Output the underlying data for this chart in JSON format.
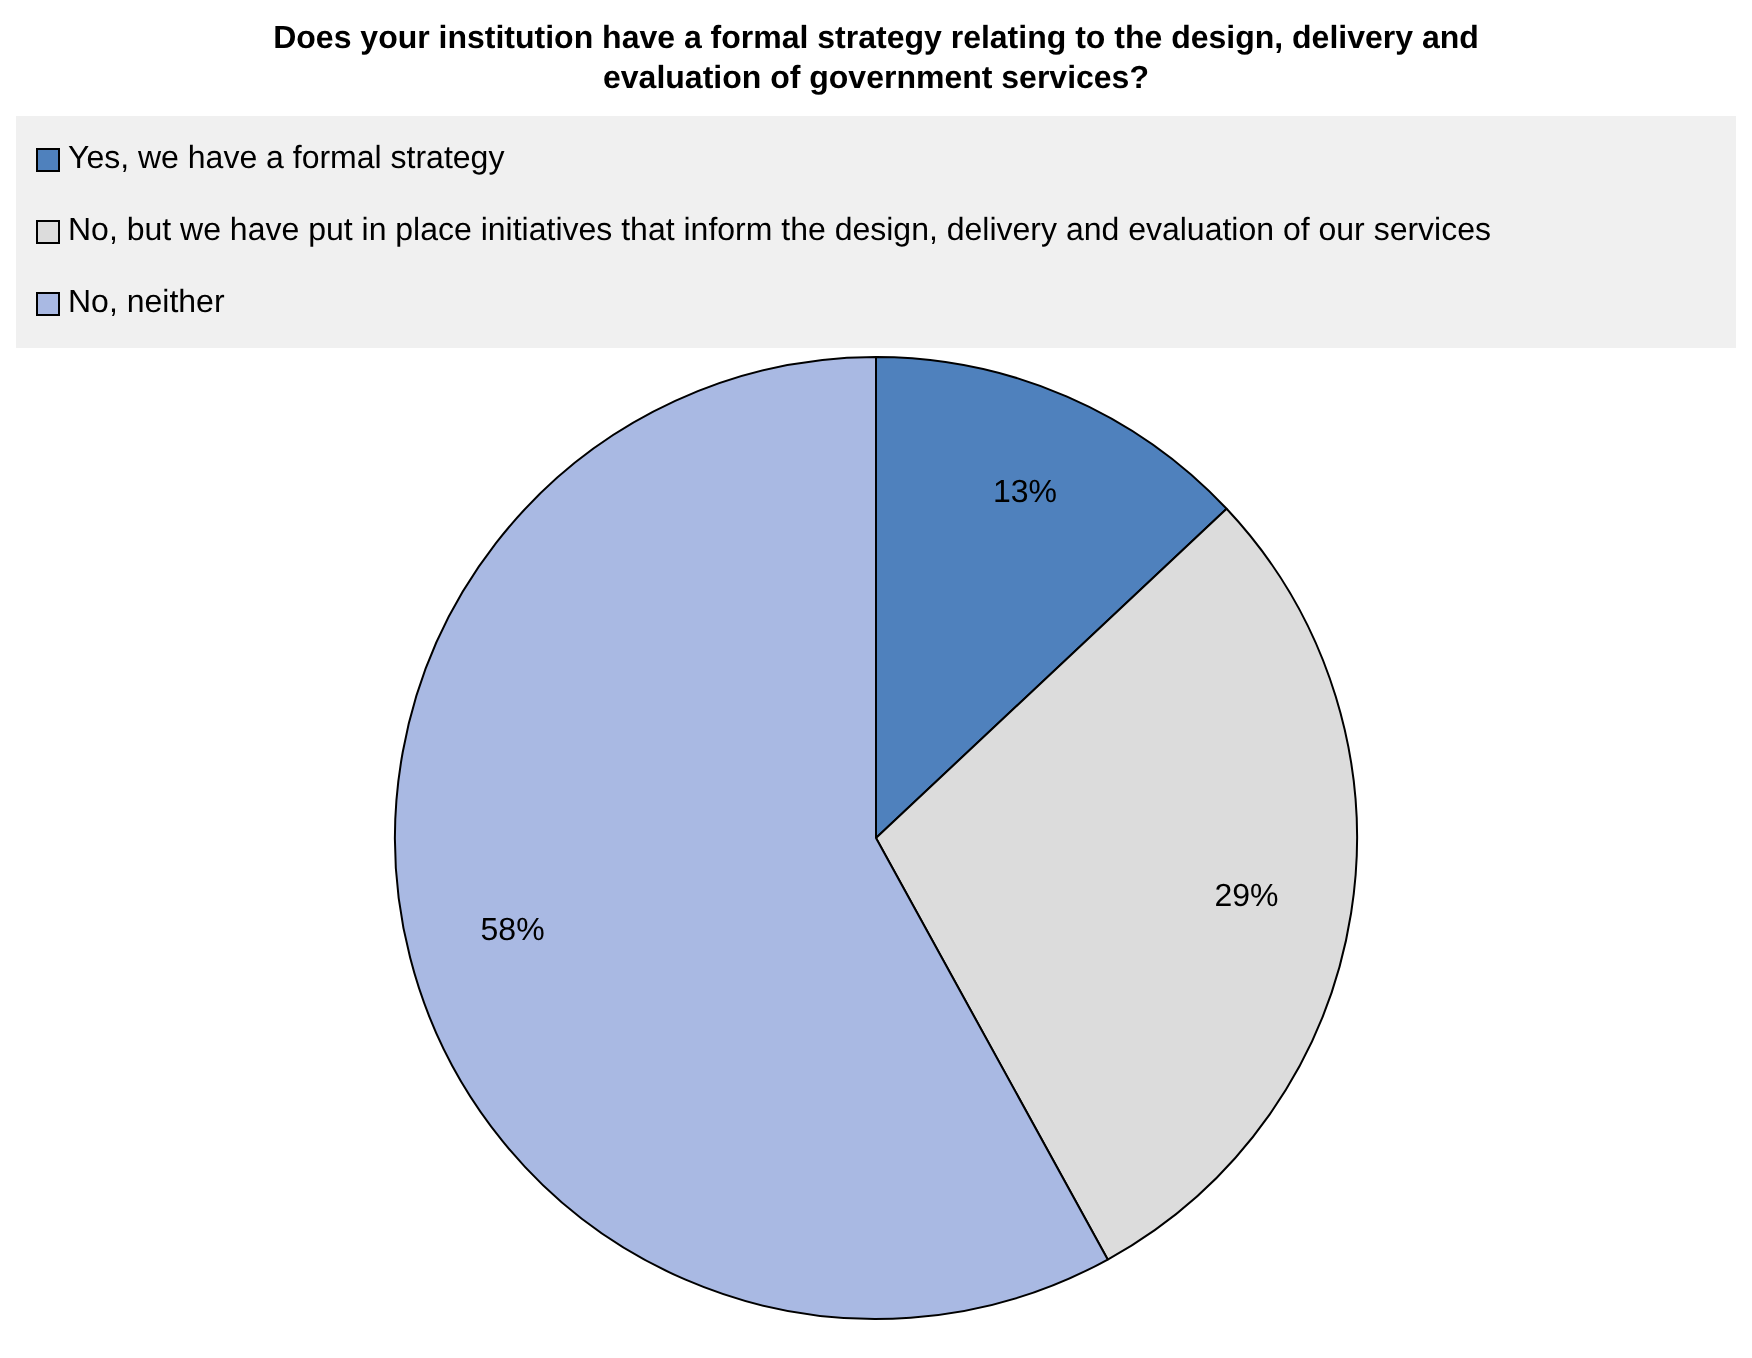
{
  "chart_data": {
    "type": "pie",
    "title": "Does your institution have a formal strategy relating to the design, delivery and evaluation of government services?",
    "categories": [
      "Yes, we have a formal strategy",
      "No, but we have put in place initiatives that inform the design, delivery and evaluation of our services",
      "No, neither"
    ],
    "values": [
      13,
      29,
      58
    ],
    "colors": [
      "#4f81bd",
      "#dcdcdc",
      "#a9b9e3"
    ],
    "value_labels": [
      "13%",
      "29%",
      "58%"
    ],
    "legend": "top"
  }
}
